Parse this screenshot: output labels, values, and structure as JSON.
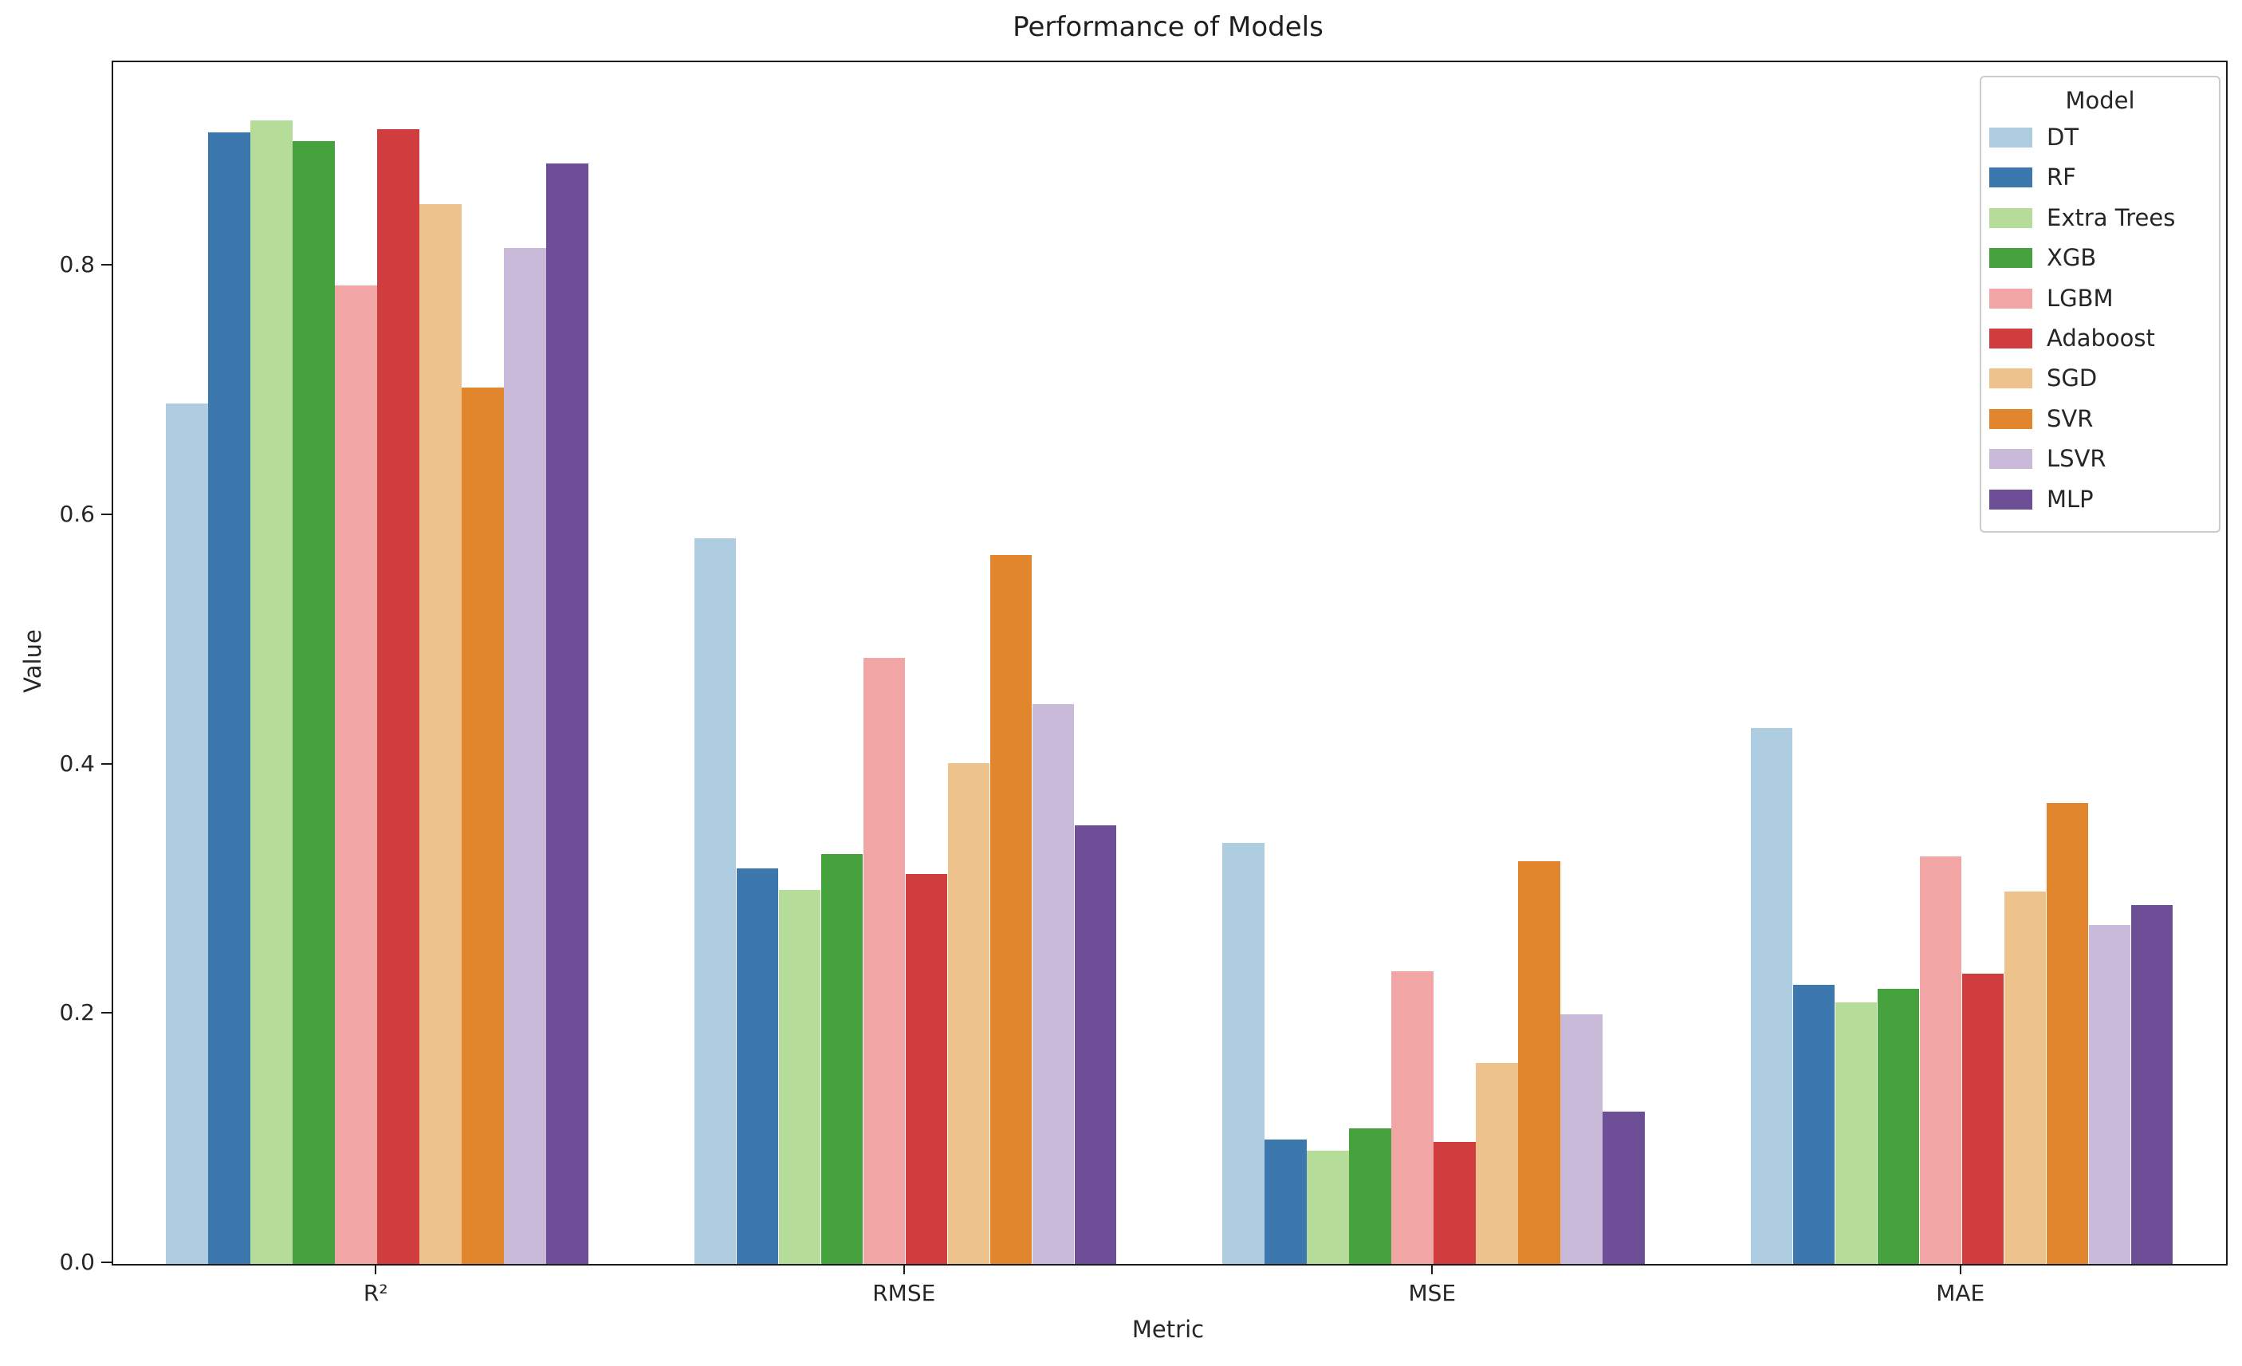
{
  "title": "Performance of Models",
  "x_axis": {
    "label": "Metric"
  },
  "y_axis": {
    "label": "Value"
  },
  "legend": {
    "title": "Model"
  },
  "chart_data": {
    "type": "bar",
    "title": "Performance of Models",
    "xlabel": "Metric",
    "ylabel": "Value",
    "categories": [
      "R²",
      "RMSE",
      "MSE",
      "MAE"
    ],
    "series": [
      {
        "name": "DT",
        "color": "#aecde1",
        "values": [
          0.69,
          0.582,
          0.338,
          0.43
        ]
      },
      {
        "name": "RF",
        "color": "#3c78ad",
        "values": [
          0.908,
          0.317,
          0.1,
          0.224
        ]
      },
      {
        "name": "Extra Trees",
        "color": "#b6dc9a",
        "values": [
          0.917,
          0.3,
          0.091,
          0.21
        ]
      },
      {
        "name": "XGB",
        "color": "#46a23d",
        "values": [
          0.901,
          0.329,
          0.109,
          0.221
        ]
      },
      {
        "name": "LGBM",
        "color": "#f2a5a5",
        "values": [
          0.785,
          0.486,
          0.235,
          0.327
        ]
      },
      {
        "name": "Adaboost",
        "color": "#cf३d3f",
        "values": [
          0.91,
          0.313,
          0.098,
          0.233
        ]
      },
      {
        "name": "SGD",
        "color": "#eec28c",
        "values": [
          0.85,
          0.402,
          0.161,
          0.299
        ]
      },
      {
        "name": "SVR",
        "color": "#e2862d",
        "values": [
          0.703,
          0.569,
          0.323,
          0.37
        ]
      },
      {
        "name": "LSVR",
        "color": "#c9bad9",
        "values": [
          0.815,
          0.449,
          0.2,
          0.272
        ]
      },
      {
        "name": "MLP",
        "color": "#6e4e96",
        "values": [
          0.883,
          0.352,
          0.122,
          0.288
        ]
      }
    ],
    "yticks": [
      {
        "value": 0.0,
        "label": "0.0"
      },
      {
        "value": 0.2,
        "label": "0.2"
      },
      {
        "value": 0.4,
        "label": "0.4"
      },
      {
        "value": 0.6,
        "label": "0.6"
      },
      {
        "value": 0.8,
        "label": "0.8"
      }
    ],
    "ylim": [
      0,
      0.964
    ],
    "grid": false,
    "legend_position": "upper right",
    "bar_group_fraction": 0.8
  }
}
